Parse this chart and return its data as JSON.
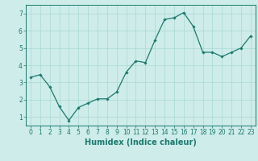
{
  "x": [
    0,
    1,
    2,
    3,
    4,
    5,
    6,
    7,
    8,
    9,
    10,
    11,
    12,
    13,
    14,
    15,
    16,
    17,
    18,
    19,
    20,
    21,
    22,
    23
  ],
  "y": [
    3.3,
    3.45,
    2.75,
    1.6,
    0.8,
    1.55,
    1.8,
    2.05,
    2.05,
    2.45,
    3.6,
    4.25,
    4.15,
    5.45,
    6.65,
    6.75,
    7.05,
    6.25,
    4.75,
    4.75,
    4.5,
    4.75,
    5.0,
    5.7
  ],
  "xlabel": "Humidex (Indice chaleur)",
  "ylim": [
    0.5,
    7.5
  ],
  "xlim": [
    -0.5,
    23.5
  ],
  "yticks": [
    1,
    2,
    3,
    4,
    5,
    6,
    7
  ],
  "xticks": [
    0,
    1,
    2,
    3,
    4,
    5,
    6,
    7,
    8,
    9,
    10,
    11,
    12,
    13,
    14,
    15,
    16,
    17,
    18,
    19,
    20,
    21,
    22,
    23
  ],
  "line_color": "#1a7a6e",
  "marker": "D",
  "marker_size": 1.8,
  "bg_color": "#ceecea",
  "grid_color": "#a8d8d4",
  "xlabel_fontsize": 7,
  "tick_fontsize": 5.5,
  "line_width": 0.9
}
